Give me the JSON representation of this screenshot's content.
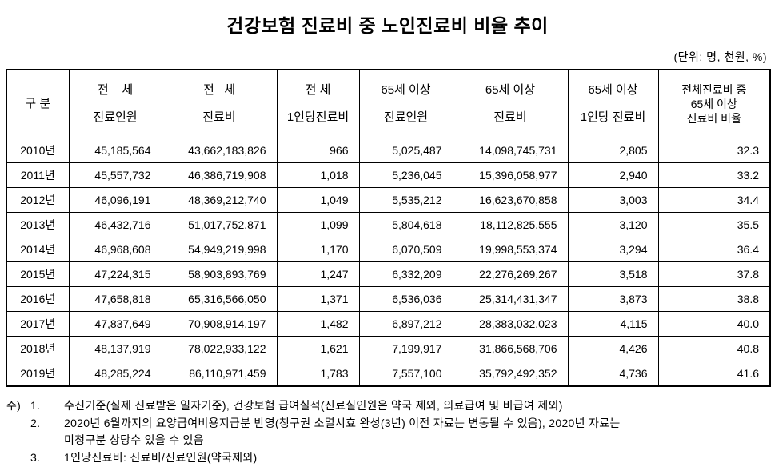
{
  "title": "건강보험 진료비 중 노인진료비 비율 추이",
  "unit_note": "(단위: 명, 천원, %)",
  "table": {
    "headers": [
      "구 분",
      "전    체\n진료인원",
      "전   체\n진료비",
      "전 체\n1인당진료비",
      "65세 이상\n진료인원",
      "65세 이상\n진료비",
      "65세 이상\n1인당 진료비",
      "전체진료비 중\n65세 이상\n진료비 비율"
    ],
    "rows": [
      [
        "2010년",
        "45,185,564",
        "43,662,183,826",
        "966",
        "5,025,487",
        "14,098,745,731",
        "2,805",
        "32.3"
      ],
      [
        "2011년",
        "45,557,732",
        "46,386,719,908",
        "1,018",
        "5,236,045",
        "15,396,058,977",
        "2,940",
        "33.2"
      ],
      [
        "2012년",
        "46,096,191",
        "48,369,212,740",
        "1,049",
        "5,535,212",
        "16,623,670,858",
        "3,003",
        "34.4"
      ],
      [
        "2013년",
        "46,432,716",
        "51,017,752,871",
        "1,099",
        "5,804,618",
        "18,112,825,555",
        "3,120",
        "35.5"
      ],
      [
        "2014년",
        "46,968,608",
        "54,949,219,998",
        "1,170",
        "6,070,509",
        "19,998,553,374",
        "3,294",
        "36.4"
      ],
      [
        "2015년",
        "47,224,315",
        "58,903,893,769",
        "1,247",
        "6,332,209",
        "22,276,269,267",
        "3,518",
        "37.8"
      ],
      [
        "2016년",
        "47,658,818",
        "65,316,566,050",
        "1,371",
        "6,536,036",
        "25,314,431,347",
        "3,873",
        "38.8"
      ],
      [
        "2017년",
        "47,837,649",
        "70,908,914,197",
        "1,482",
        "6,897,212",
        "28,383,032,023",
        "4,115",
        "40.0"
      ],
      [
        "2018년",
        "48,137,919",
        "78,022,933,122",
        "1,621",
        "7,199,917",
        "31,866,568,706",
        "4,426",
        "40.8"
      ],
      [
        "2019년",
        "48,285,224",
        "86,110,971,459",
        "1,783",
        "7,557,100",
        "35,792,492,352",
        "4,736",
        "41.6"
      ]
    ]
  },
  "footnotes": {
    "marker": "주)",
    "items": [
      {
        "num": "1.",
        "text": "수진기준(실제 진료받은 일자기준), 건강보험 급여실적(진료실인원은 약국 제외, 의료급여 및 비급여 제외)"
      },
      {
        "num": "2.",
        "text": "2020년 6월까지의 요양급여비용지급분 반영(청구권 소멸시효 완성(3년) 이전 자료는 변동될 수 있음), 2020년 자료는\n미청구분 상당수 있을 수 있음"
      },
      {
        "num": "3.",
        "text": "1인당진료비: 진료비/진료인원(약국제외)"
      }
    ]
  }
}
